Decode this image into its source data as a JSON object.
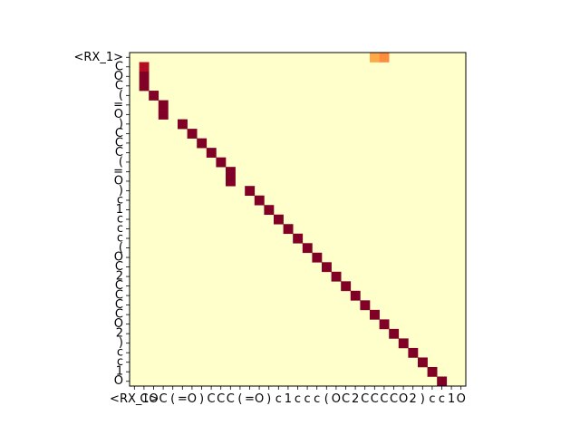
{
  "chart_data": {
    "type": "heatmap",
    "title": "",
    "xlabel": "",
    "ylabel": "",
    "row_labels": [
      "<RX_1>",
      "C",
      "O",
      "C",
      "(",
      "=",
      "O",
      ")",
      "C",
      "C",
      "C",
      "(",
      "=",
      "O",
      ")",
      "c",
      "1",
      "c",
      "c",
      "c",
      "(",
      "O",
      "C",
      "2",
      "C",
      "C",
      "C",
      "C",
      "O",
      "2",
      ")",
      "c",
      "c",
      "1",
      "O"
    ],
    "col_labels": [
      "<RX_1>",
      "C",
      "O",
      "C",
      "(",
      "=",
      "O",
      ")",
      "C",
      "C",
      "C",
      "(",
      "=",
      "O",
      ")",
      "c",
      "1",
      "c",
      "c",
      "c",
      "(",
      "O",
      "C",
      "2",
      "C",
      "C",
      "C",
      "C",
      "O",
      "2",
      ")",
      "c",
      "c",
      "1",
      "O"
    ],
    "value_range": [
      0,
      1
    ],
    "colormap": "YlOrRd",
    "background_value": 0.0,
    "cells": [
      {
        "row": 0,
        "col": 25,
        "value": 0.45
      },
      {
        "row": 0,
        "col": 26,
        "value": 0.6
      },
      {
        "row": 1,
        "col": 1,
        "value": 0.9
      },
      {
        "row": 2,
        "col": 1,
        "value": 1.0
      },
      {
        "row": 3,
        "col": 1,
        "value": 1.0
      },
      {
        "row": 4,
        "col": 2,
        "value": 1.0
      },
      {
        "row": 5,
        "col": 3,
        "value": 1.0
      },
      {
        "row": 6,
        "col": 3,
        "value": 1.0
      },
      {
        "row": 7,
        "col": 5,
        "value": 1.0
      },
      {
        "row": 8,
        "col": 6,
        "value": 1.0
      },
      {
        "row": 9,
        "col": 7,
        "value": 1.0
      },
      {
        "row": 10,
        "col": 8,
        "value": 1.0
      },
      {
        "row": 11,
        "col": 9,
        "value": 1.0
      },
      {
        "row": 12,
        "col": 10,
        "value": 1.0
      },
      {
        "row": 13,
        "col": 10,
        "value": 1.0
      },
      {
        "row": 14,
        "col": 12,
        "value": 1.0
      },
      {
        "row": 15,
        "col": 13,
        "value": 1.0
      },
      {
        "row": 16,
        "col": 14,
        "value": 1.0
      },
      {
        "row": 17,
        "col": 15,
        "value": 1.0
      },
      {
        "row": 18,
        "col": 16,
        "value": 1.0
      },
      {
        "row": 19,
        "col": 17,
        "value": 1.0
      },
      {
        "row": 20,
        "col": 18,
        "value": 1.0
      },
      {
        "row": 21,
        "col": 19,
        "value": 1.0
      },
      {
        "row": 22,
        "col": 20,
        "value": 1.0
      },
      {
        "row": 23,
        "col": 21,
        "value": 1.0
      },
      {
        "row": 24,
        "col": 22,
        "value": 1.0
      },
      {
        "row": 25,
        "col": 23,
        "value": 1.0
      },
      {
        "row": 26,
        "col": 24,
        "value": 1.0
      },
      {
        "row": 27,
        "col": 25,
        "value": 1.0
      },
      {
        "row": 28,
        "col": 26,
        "value": 1.0
      },
      {
        "row": 29,
        "col": 27,
        "value": 1.0
      },
      {
        "row": 30,
        "col": 28,
        "value": 1.0
      },
      {
        "row": 31,
        "col": 29,
        "value": 1.0
      },
      {
        "row": 32,
        "col": 30,
        "value": 1.0
      },
      {
        "row": 33,
        "col": 31,
        "value": 1.0
      },
      {
        "row": 34,
        "col": 32,
        "value": 1.0
      }
    ]
  }
}
